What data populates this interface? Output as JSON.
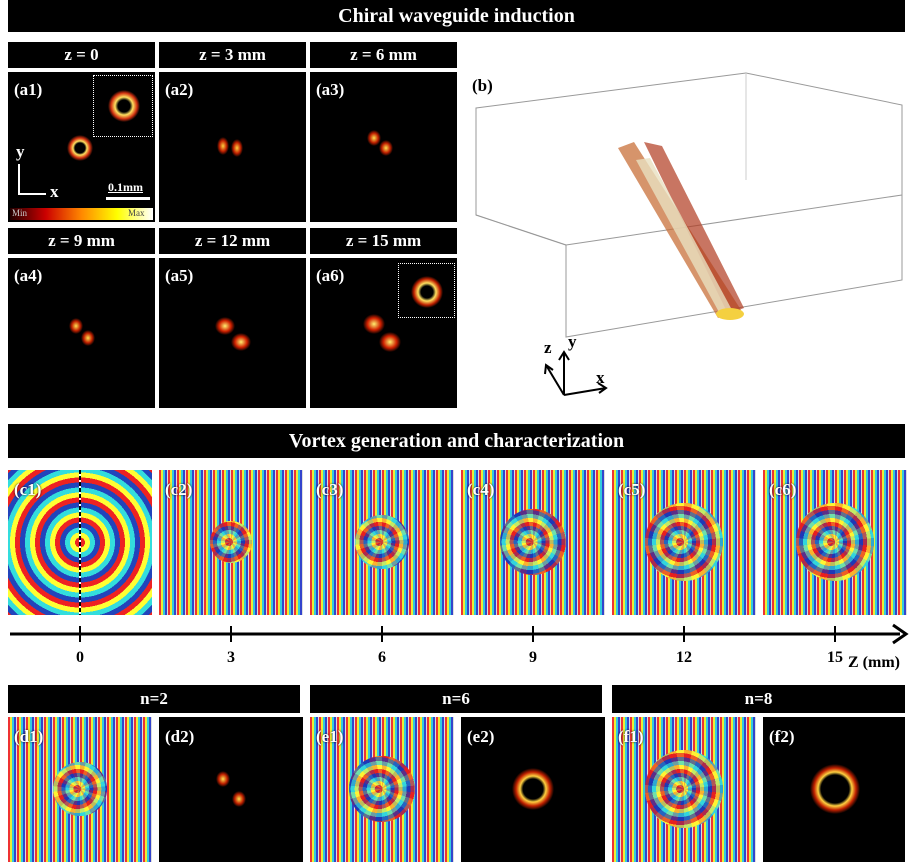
{
  "header_a": "Chiral waveguide induction",
  "panels_a": [
    {
      "title": "z = 0",
      "label": "(a1)"
    },
    {
      "title": "z = 3 mm",
      "label": "(a2)"
    },
    {
      "title": "z = 6 mm",
      "label": "(a3)"
    },
    {
      "title": "z = 9 mm",
      "label": "(a4)"
    },
    {
      "title": "z = 12 mm",
      "label": "(a5)"
    },
    {
      "title": "z = 15 mm",
      "label": "(a6)"
    }
  ],
  "colorbar": {
    "min": "Min",
    "max": "Max"
  },
  "scale_bar": "0.1mm",
  "axes_a": {
    "x": "x",
    "y": "y"
  },
  "panel_b": {
    "label": "(b)",
    "axes": {
      "x": "x",
      "y": "y",
      "z": "z"
    }
  },
  "header_c": "Vortex generation and characterization",
  "panels_c": [
    "(c1)",
    "(c2)",
    "(c3)",
    "(c4)",
    "(c5)",
    "(c6)"
  ],
  "z_axis": {
    "label": "Z (mm)",
    "ticks": [
      0,
      3,
      6,
      9,
      12,
      15
    ]
  },
  "groups": [
    {
      "title": "n=2",
      "panels": [
        "(d1)",
        "(d2)"
      ]
    },
    {
      "title": "n=6",
      "panels": [
        "(e1)",
        "(e2)"
      ]
    },
    {
      "title": "n=8",
      "panels": [
        "(f1)",
        "(f2)"
      ]
    }
  ]
}
